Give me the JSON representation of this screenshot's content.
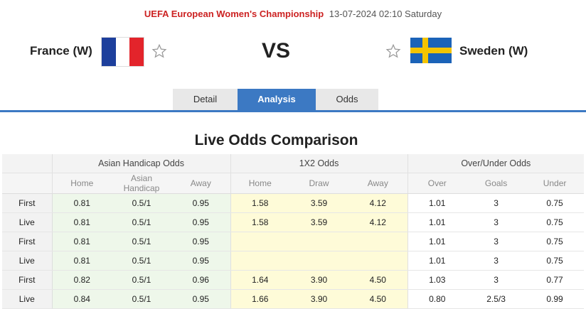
{
  "match": {
    "league": "UEFA European Women's Championship",
    "datetime": "13-07-2024 02:10 Saturday",
    "home_team": "France (W)",
    "away_team": "Sweden (W)",
    "vs": "VS"
  },
  "tabs": [
    {
      "label": "Detail",
      "active": false
    },
    {
      "label": "Analysis",
      "active": true
    },
    {
      "label": "Odds",
      "active": false
    }
  ],
  "section_title": "Live Odds Comparison",
  "table": {
    "groups": [
      "Asian Handicap Odds",
      "1X2 Odds",
      "Over/Under Odds"
    ],
    "columns": [
      "Home",
      "Asian Handicap",
      "Away",
      "Home",
      "Draw",
      "Away",
      "Over",
      "Goals",
      "Under"
    ],
    "rows": [
      {
        "label": "First",
        "cells": [
          "0.81",
          "0.5/1",
          "0.95",
          "1.58",
          "3.59",
          "4.12",
          "1.01",
          "3",
          "0.75"
        ]
      },
      {
        "label": "Live",
        "cells": [
          "0.81",
          "0.5/1",
          "0.95",
          "1.58",
          "3.59",
          "4.12",
          "1.01",
          "3",
          "0.75"
        ]
      },
      {
        "label": "First",
        "cells": [
          "0.81",
          "0.5/1",
          "0.95",
          "",
          "",
          "",
          "1.01",
          "3",
          "0.75"
        ]
      },
      {
        "label": "Live",
        "cells": [
          "0.81",
          "0.5/1",
          "0.95",
          "",
          "",
          "",
          "1.01",
          "3",
          "0.75"
        ]
      },
      {
        "label": "First",
        "cells": [
          "0.82",
          "0.5/1",
          "0.96",
          "1.64",
          "3.90",
          "4.50",
          "1.03",
          "3",
          "0.77"
        ]
      },
      {
        "label": "Live",
        "cells": [
          "0.84",
          "0.5/1",
          "0.95",
          "1.66",
          "3.90",
          "4.50",
          "0.80",
          "2.5/3",
          "0.99"
        ]
      }
    ]
  },
  "colors": {
    "accent": "#3c79c3",
    "league": "#cc2222",
    "asian_handicap_bg": "#eef7ea",
    "x12_bg": "#fefbd8",
    "france_blue": "#1d3f9c",
    "france_red": "#e3242b",
    "sweden_blue": "#1b63b8",
    "sweden_yellow": "#f4c400"
  },
  "icons": {
    "home_flag": "france-flag-icon",
    "away_flag": "sweden-flag-icon",
    "favorite": "star-outline-icon"
  }
}
